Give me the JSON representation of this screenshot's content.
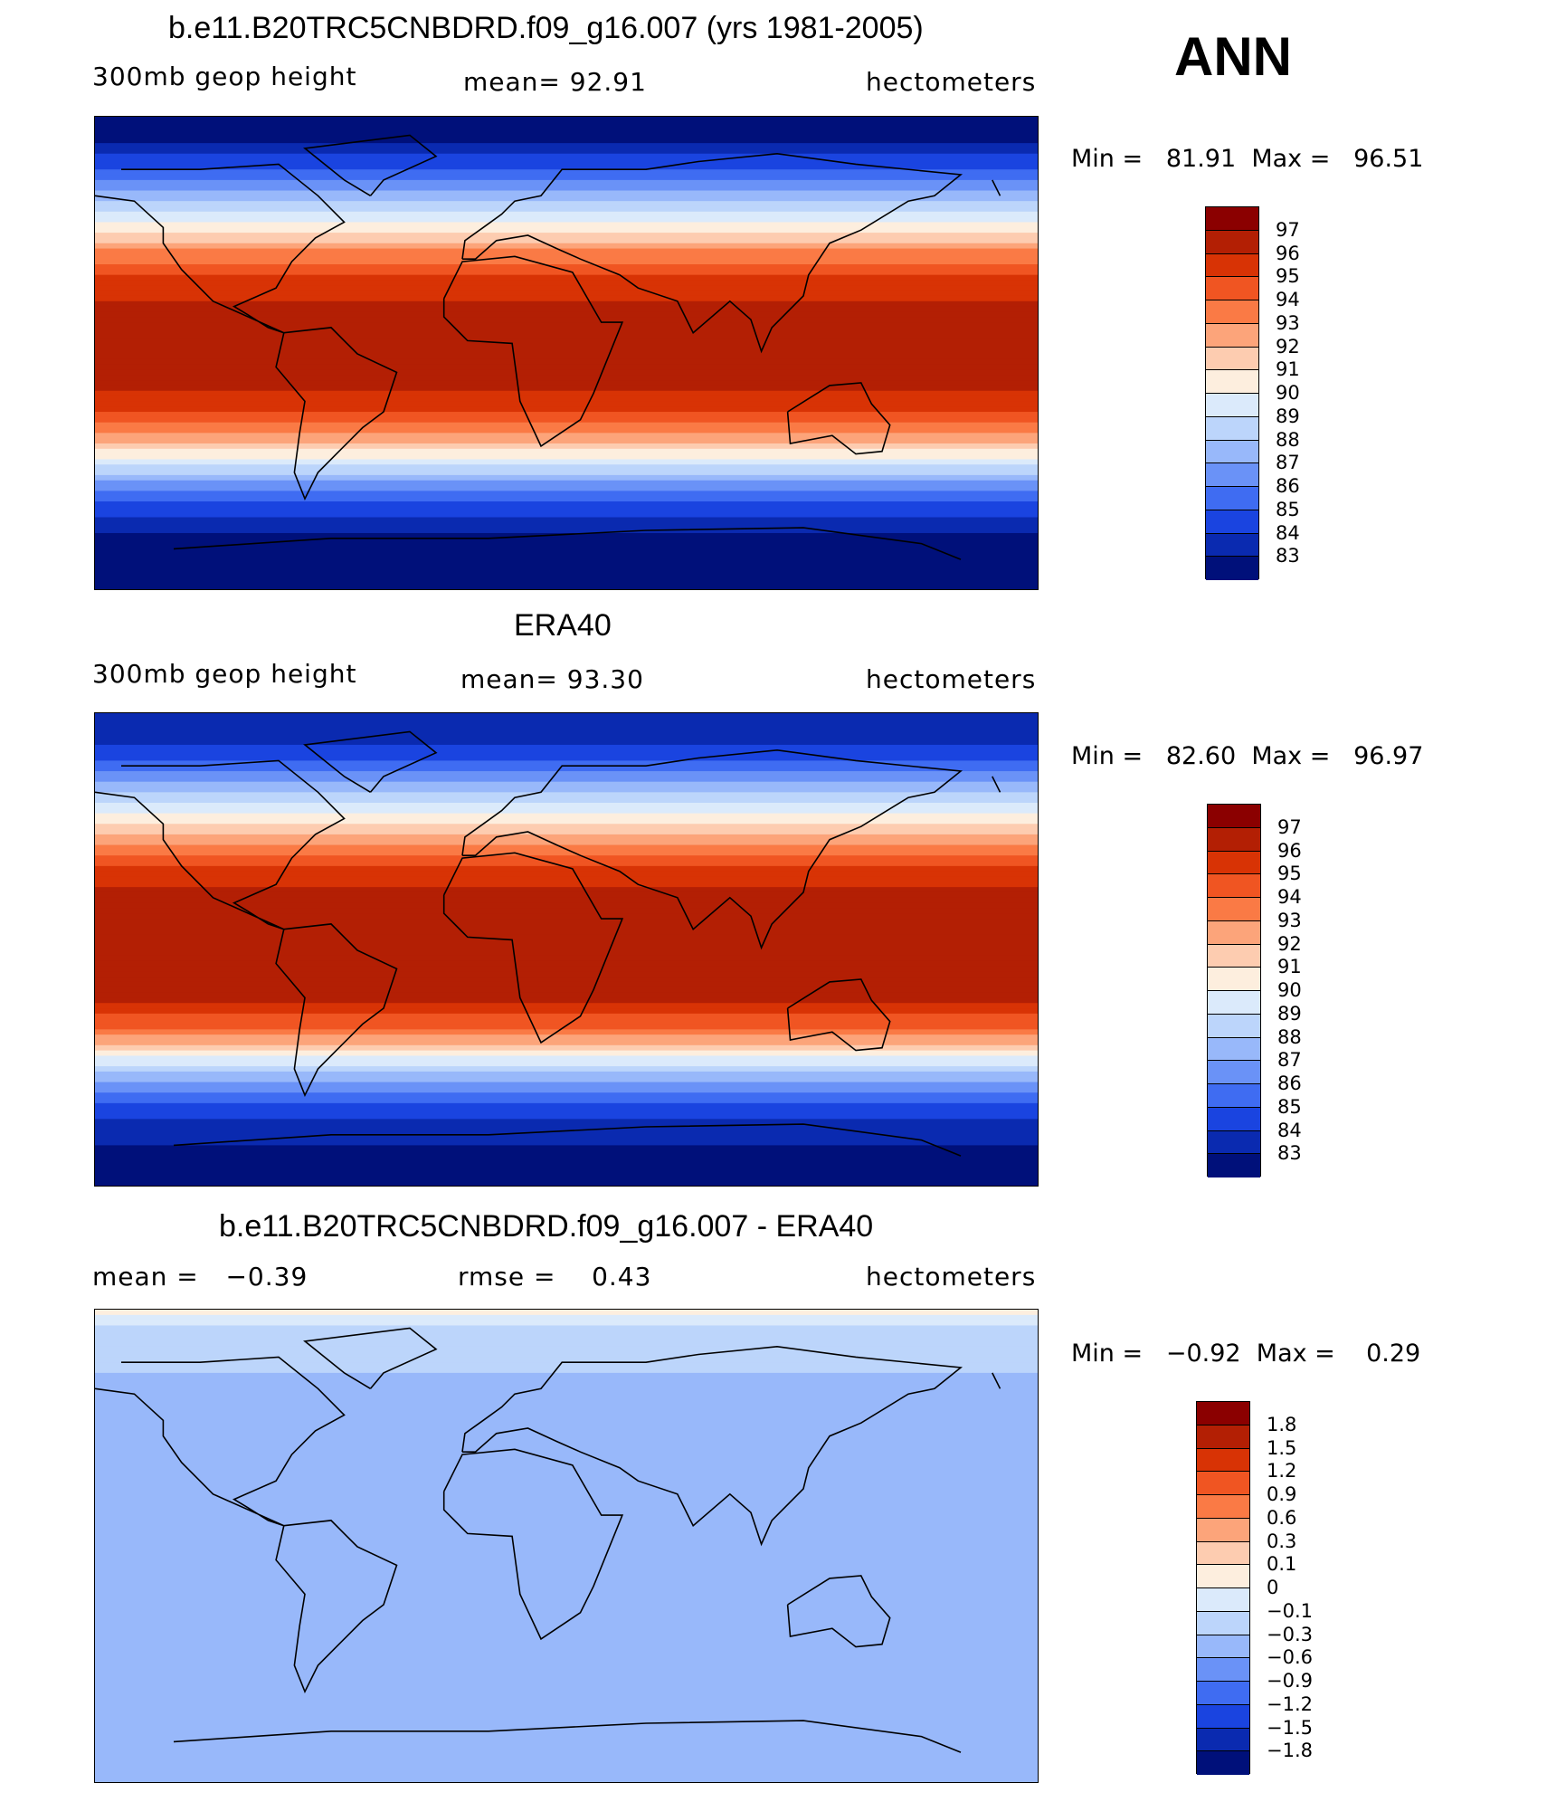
{
  "season": "ANN",
  "panels": [
    {
      "title": "b.e11.B20TRC5CNBDRD.f09_g16.007 (yrs 1981-2005)",
      "left_label": "300mb geop height",
      "center_label": "mean=   92.91",
      "right_label": "hectometers",
      "min_max": "Min =   81.91  Max =   96.51"
    },
    {
      "title": "ERA40",
      "left_label": "300mb geop height",
      "center_label": "mean=   93.30",
      "right_label": "hectometers",
      "min_max": "Min =   82.60  Max =   96.97"
    },
    {
      "title": "b.e11.B20TRC5CNBDRD.f09_g16.007 - ERA40",
      "left_label": "mean =   −0.39",
      "center_label": "rmse =    0.43",
      "right_label": "hectometers",
      "min_max": "Min =   −0.92  Max =    0.29"
    }
  ],
  "chart_data": [
    {
      "type": "heatmap",
      "title": "b.e11.B20TRC5CNBDRD.f09_g16.007 (yrs 1981-2005)",
      "variable": "300mb geop height",
      "units": "hectometers",
      "mean": 92.91,
      "min": 81.91,
      "max": 96.51,
      "colorbar_levels": [
        "97",
        "96",
        "95",
        "94",
        "93",
        "92",
        "91",
        "90",
        "89",
        "88",
        "87",
        "86",
        "85",
        "84",
        "83"
      ],
      "colorbar_colors": [
        "#8b0000",
        "#b31f04",
        "#d83305",
        "#f05522",
        "#fa7a45",
        "#fca47a",
        "#fdccb0",
        "#fdeede",
        "#dbeafb",
        "#bcd5fb",
        "#98b8fa",
        "#6a92f7",
        "#3f6cf2",
        "#1a44e0",
        "#0a2ab0",
        "#00107a"
      ],
      "field_profile": [
        {
          "lat": 90,
          "v": 82.3
        },
        {
          "lat": 80,
          "v": 83.0
        },
        {
          "lat": 70,
          "v": 85.0
        },
        {
          "lat": 60,
          "v": 87.3
        },
        {
          "lat": 50,
          "v": 90.0
        },
        {
          "lat": 40,
          "v": 92.8
        },
        {
          "lat": 30,
          "v": 94.9
        },
        {
          "lat": 20,
          "v": 96.1
        },
        {
          "lat": 10,
          "v": 96.4
        },
        {
          "lat": 0,
          "v": 96.4
        },
        {
          "lat": -10,
          "v": 96.3
        },
        {
          "lat": -20,
          "v": 95.5
        },
        {
          "lat": -30,
          "v": 93.3
        },
        {
          "lat": -40,
          "v": 89.8
        },
        {
          "lat": -50,
          "v": 86.6
        },
        {
          "lat": -60,
          "v": 84.2
        },
        {
          "lat": -70,
          "v": 82.6
        },
        {
          "lat": -80,
          "v": 82.0
        },
        {
          "lat": -90,
          "v": 81.9
        }
      ]
    },
    {
      "type": "heatmap",
      "title": "ERA40",
      "variable": "300mb geop height",
      "units": "hectometers",
      "mean": 93.3,
      "min": 82.6,
      "max": 96.97,
      "colorbar_levels": [
        "97",
        "96",
        "95",
        "94",
        "93",
        "92",
        "91",
        "90",
        "89",
        "88",
        "87",
        "86",
        "85",
        "84",
        "83"
      ],
      "colorbar_colors": [
        "#8b0000",
        "#b31f04",
        "#d83305",
        "#f05522",
        "#fa7a45",
        "#fca47a",
        "#fdccb0",
        "#fdeede",
        "#dbeafb",
        "#bcd5fb",
        "#98b8fa",
        "#6a92f7",
        "#3f6cf2",
        "#1a44e0",
        "#0a2ab0",
        "#00107a"
      ],
      "field_profile": [
        {
          "lat": 90,
          "v": 83.0
        },
        {
          "lat": 80,
          "v": 83.6
        },
        {
          "lat": 70,
          "v": 85.5
        },
        {
          "lat": 60,
          "v": 87.8
        },
        {
          "lat": 50,
          "v": 90.4
        },
        {
          "lat": 40,
          "v": 93.2
        },
        {
          "lat": 30,
          "v": 95.3
        },
        {
          "lat": 20,
          "v": 96.5
        },
        {
          "lat": 10,
          "v": 96.8
        },
        {
          "lat": 0,
          "v": 96.8
        },
        {
          "lat": -10,
          "v": 96.7
        },
        {
          "lat": -20,
          "v": 96.0
        },
        {
          "lat": -30,
          "v": 93.8
        },
        {
          "lat": -40,
          "v": 90.3
        },
        {
          "lat": -50,
          "v": 87.0
        },
        {
          "lat": -60,
          "v": 84.6
        },
        {
          "lat": -70,
          "v": 83.2
        },
        {
          "lat": -80,
          "v": 82.7
        },
        {
          "lat": -90,
          "v": 82.6
        }
      ]
    },
    {
      "type": "heatmap",
      "title": "b.e11.B20TRC5CNBDRD.f09_g16.007 - ERA40",
      "units": "hectometers",
      "mean": -0.39,
      "rmse": 0.43,
      "min": -0.92,
      "max": 0.29,
      "colorbar_levels": [
        "1.8",
        "1.5",
        "1.2",
        "0.9",
        "0.6",
        "0.3",
        "0.1",
        "0",
        "−0.1",
        "−0.3",
        "−0.6",
        "−0.9",
        "−1.2",
        "−1.5",
        "−1.8"
      ],
      "colorbar_colors": [
        "#8b0000",
        "#b31f04",
        "#d83305",
        "#f05522",
        "#fa7a45",
        "#fca47a",
        "#fdccb0",
        "#fdeede",
        "#dbeafb",
        "#bcd5fb",
        "#98b8fa",
        "#6a92f7",
        "#3f6cf2",
        "#1a44e0",
        "#0a2ab0",
        "#00107a"
      ],
      "field_profile": [
        {
          "lat": 90,
          "v": 0.05
        },
        {
          "lat": 80,
          "v": -0.2
        },
        {
          "lat": 60,
          "v": -0.35
        },
        {
          "lat": 40,
          "v": -0.4
        },
        {
          "lat": 20,
          "v": -0.4
        },
        {
          "lat": 0,
          "v": -0.4
        },
        {
          "lat": -20,
          "v": -0.35
        },
        {
          "lat": -40,
          "v": -0.3
        },
        {
          "lat": -60,
          "v": -0.6
        },
        {
          "lat": -80,
          "v": -0.4
        },
        {
          "lat": -90,
          "v": -0.4
        }
      ]
    }
  ]
}
